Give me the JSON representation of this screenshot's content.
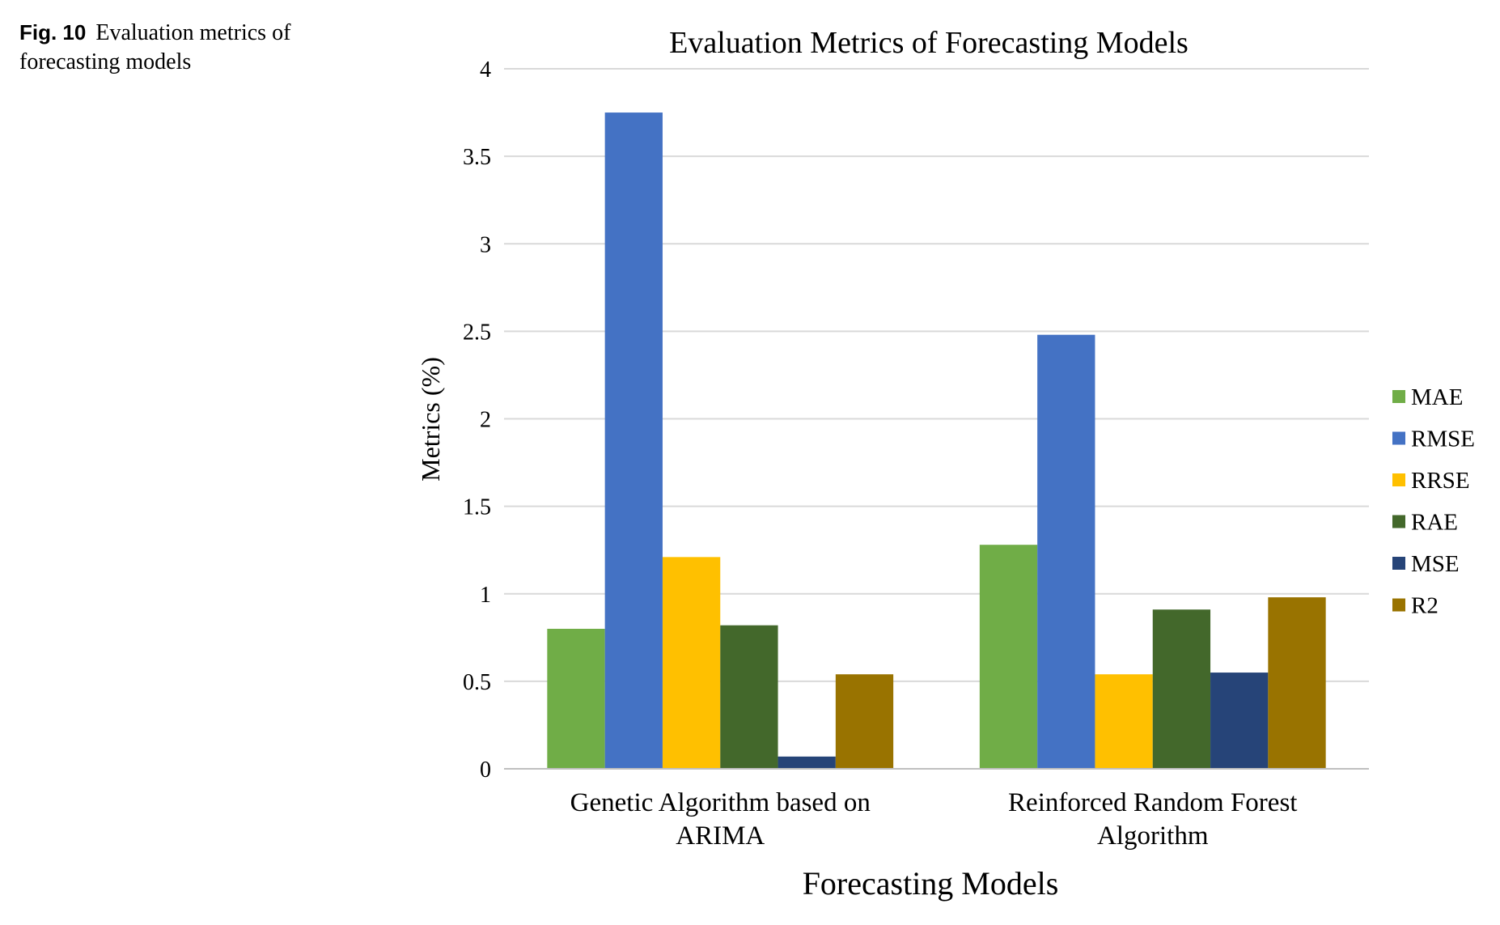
{
  "caption": {
    "label": "Fig. 10",
    "text": "Evaluation metrics of forecasting models"
  },
  "chart_data": {
    "type": "bar",
    "title": "Evaluation Metrics of Forecasting Models",
    "xlabel": "Forecasting Models",
    "ylabel": "Metrics (%)",
    "ylim": [
      0,
      4
    ],
    "yticks": [
      0,
      0.5,
      1,
      1.5,
      2,
      2.5,
      3,
      3.5,
      4
    ],
    "ytick_labels": [
      "0",
      "0.5",
      "1",
      "1.5",
      "2",
      "2.5",
      "3",
      "3.5",
      "4"
    ],
    "grid": true,
    "legend_position": "right",
    "categories": [
      [
        "Genetic Algorithm based on",
        "ARIMA"
      ],
      [
        "Reinforced Random Forest",
        "Algorithm"
      ]
    ],
    "series": [
      {
        "name": "MAE",
        "color": "#70AD47",
        "values": [
          0.8,
          1.28
        ]
      },
      {
        "name": "RMSE",
        "color": "#4472C4",
        "values": [
          3.75,
          2.48
        ]
      },
      {
        "name": "RRSE",
        "color": "#FFC000",
        "values": [
          1.21,
          0.54
        ]
      },
      {
        "name": "RAE",
        "color": "#43682B",
        "values": [
          0.82,
          0.91
        ]
      },
      {
        "name": "MSE",
        "color": "#264478",
        "values": [
          0.07,
          0.55
        ]
      },
      {
        "name": "R2",
        "color": "#997300",
        "values": [
          0.54,
          0.98
        ]
      }
    ]
  }
}
